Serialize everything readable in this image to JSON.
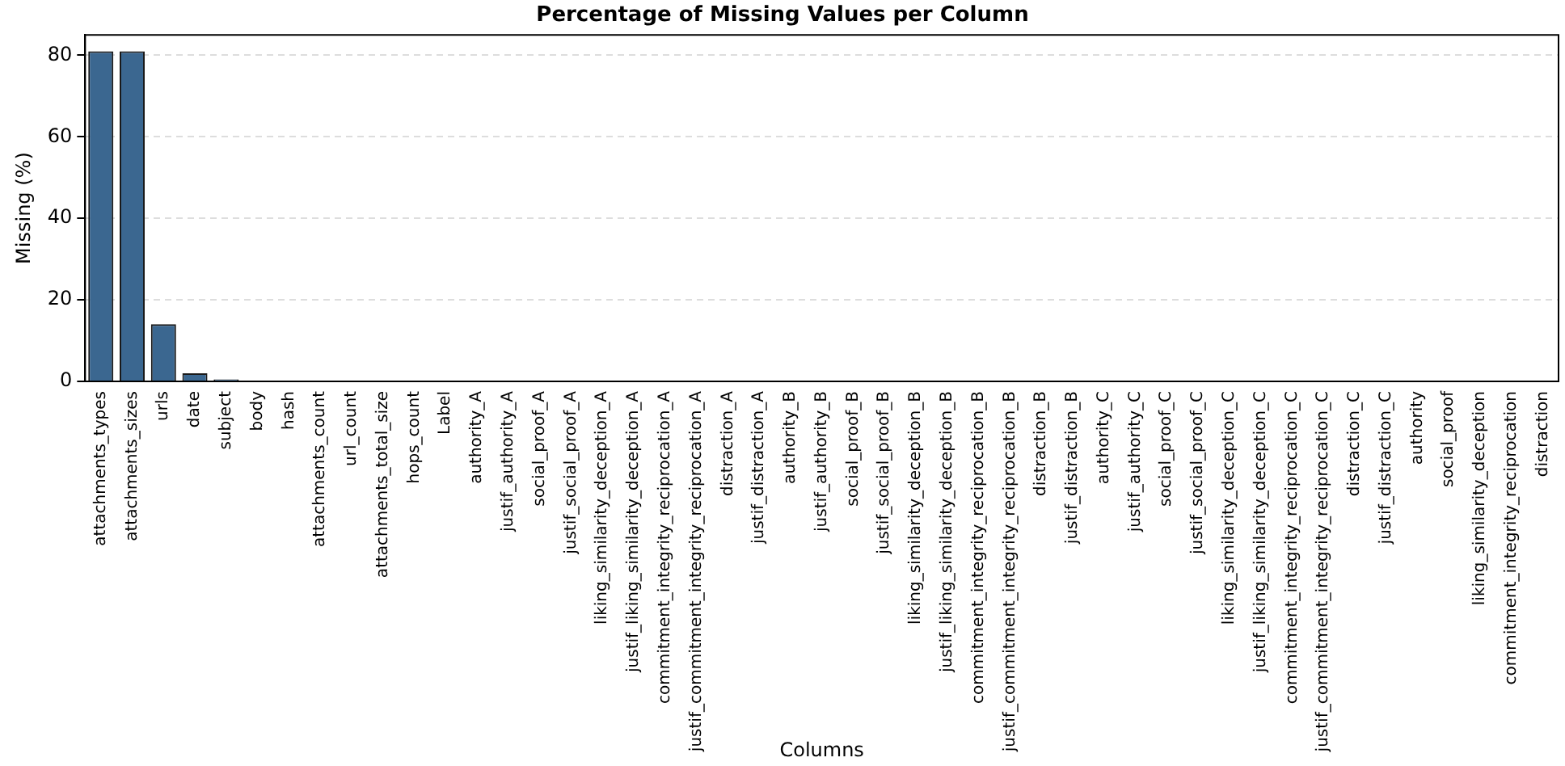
{
  "chart_data": {
    "type": "bar",
    "title": "Percentage of Missing Values per Column",
    "xlabel": "Columns",
    "ylabel": "Missing (%)",
    "categories": [
      "attachments_types",
      "attachments_sizes",
      "urls",
      "date",
      "subject",
      "body",
      "hash",
      "attachments_count",
      "url_count",
      "attachments_total_size",
      "hops_count",
      "Label",
      "authority_A",
      "justif_authority_A",
      "social_proof_A",
      "justif_social_proof_A",
      "liking_similarity_deception_A",
      "justif_liking_similarity_deception_A",
      "commitment_integrity_reciprocation_A",
      "justif_commitment_integrity_reciprocation_A",
      "distraction_A",
      "justif_distraction_A",
      "authority_B",
      "justif_authority_B",
      "social_proof_B",
      "justif_social_proof_B",
      "liking_similarity_deception_B",
      "justif_liking_similarity_deception_B",
      "commitment_integrity_reciprocation_B",
      "justif_commitment_integrity_reciprocation_B",
      "distraction_B",
      "justif_distraction_B",
      "authority_C",
      "justif_authority_C",
      "social_proof_C",
      "justif_social_proof_C",
      "liking_similarity_deception_C",
      "justif_liking_similarity_deception_C",
      "commitment_integrity_reciprocation_C",
      "justif_commitment_integrity_reciprocation_C",
      "distraction_C",
      "justif_distraction_C",
      "authority",
      "social_proof",
      "liking_similarity_deception",
      "commitment_integrity_reciprocation",
      "distraction"
    ],
    "values": [
      81,
      81,
      14,
      2,
      0.5,
      0,
      0,
      0,
      0,
      0,
      0,
      0,
      0,
      0,
      0,
      0,
      0,
      0,
      0,
      0,
      0,
      0,
      0,
      0,
      0,
      0,
      0,
      0,
      0,
      0,
      0,
      0,
      0,
      0,
      0,
      0,
      0,
      0,
      0,
      0,
      0,
      0,
      0,
      0,
      0,
      0,
      0
    ],
    "color": "#3b6790",
    "ylim": [
      0,
      85
    ],
    "yticks": [
      0,
      20,
      40,
      60,
      80
    ],
    "grid": "y",
    "legend": false
  }
}
